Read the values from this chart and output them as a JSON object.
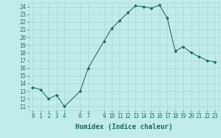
{
  "xlabel": "Humidex (Indice chaleur)",
  "x": [
    0,
    1,
    2,
    3,
    4,
    6,
    7,
    9,
    10,
    11,
    12,
    13,
    14,
    15,
    16,
    17,
    18,
    19,
    20,
    21,
    22,
    23
  ],
  "y": [
    13.5,
    13.2,
    12.0,
    12.5,
    11.0,
    13.0,
    16.0,
    19.5,
    21.2,
    22.2,
    23.2,
    24.1,
    24.0,
    23.8,
    24.2,
    22.5,
    18.2,
    18.8,
    18.0,
    17.5,
    17.0,
    16.8
  ],
  "line_color": "#1a6b5a",
  "marker_color": "#1a6b5a",
  "bg_color": "#c0ecec",
  "grid_color": "#a8d4d4",
  "text_color": "#1a6b5a",
  "ylim": [
    10.5,
    24.5
  ],
  "xlim": [
    -0.5,
    23.5
  ],
  "yticks": [
    11,
    12,
    13,
    14,
    15,
    16,
    17,
    18,
    19,
    20,
    21,
    22,
    23,
    24
  ],
  "xticks": [
    0,
    1,
    2,
    3,
    4,
    6,
    7,
    9,
    10,
    11,
    12,
    13,
    14,
    15,
    16,
    17,
    18,
    19,
    20,
    21,
    22,
    23
  ],
  "tick_fontsize": 5.5,
  "xlabel_fontsize": 7.0
}
